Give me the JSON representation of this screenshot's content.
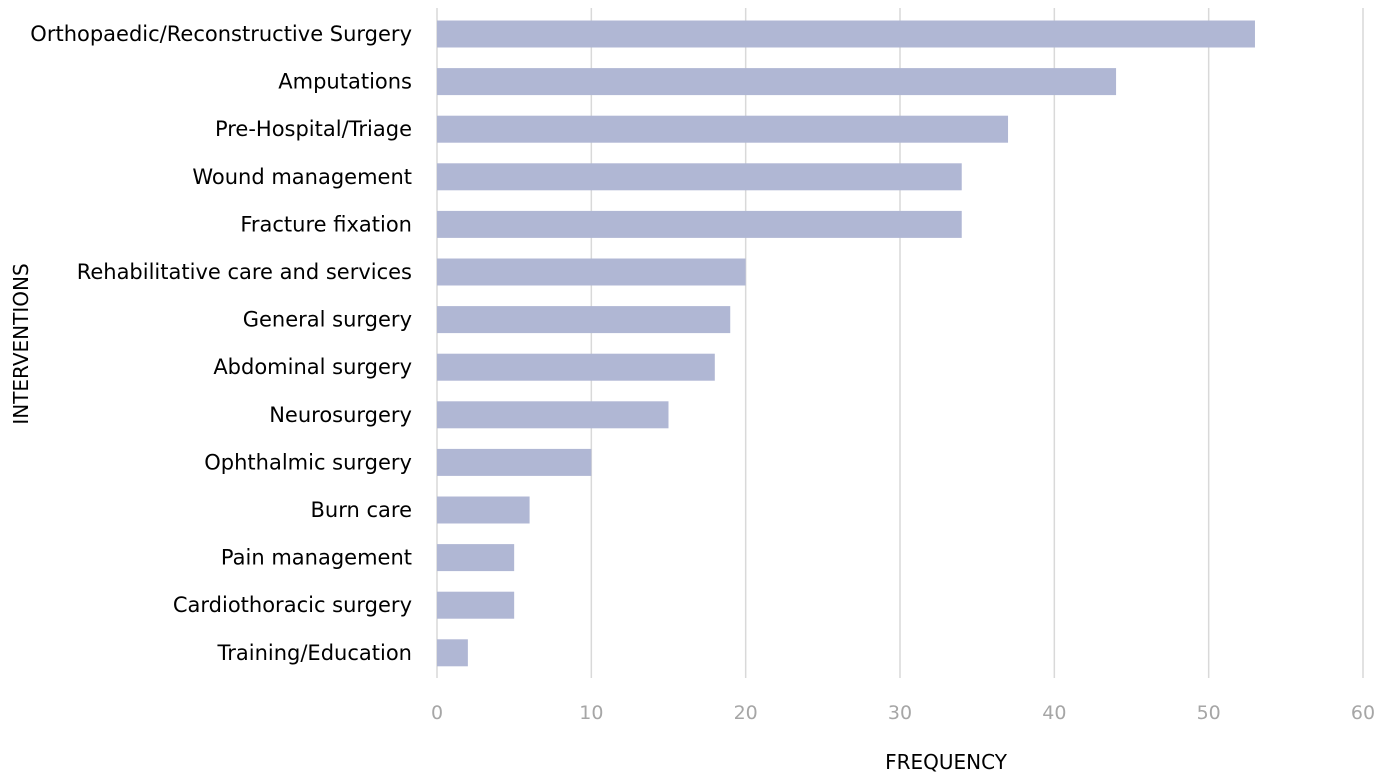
{
  "chart_data": {
    "type": "bar",
    "orientation": "horizontal",
    "title": "",
    "xlabel": "FREQUENCY",
    "ylabel": "INTERVENTIONS",
    "xlim": [
      0,
      60
    ],
    "xticks": [
      0,
      10,
      20,
      30,
      40,
      50,
      60
    ],
    "grid": true,
    "legend": "none",
    "bar_color": "#b0b7d4",
    "categories": [
      "Orthopaedic/Reconstructive Surgery",
      "Amputations",
      "Pre-Hospital/Triage",
      "Wound management",
      "Fracture fixation",
      "Rehabilitative care and services",
      "General surgery",
      "Abdominal surgery",
      "Neurosurgery",
      "Ophthalmic surgery",
      "Burn care",
      "Pain management",
      "Cardiothoracic surgery",
      "Training/Education"
    ],
    "values": [
      53,
      44,
      37,
      34,
      34,
      20,
      19,
      18,
      15,
      10,
      6,
      5,
      5,
      2
    ]
  }
}
